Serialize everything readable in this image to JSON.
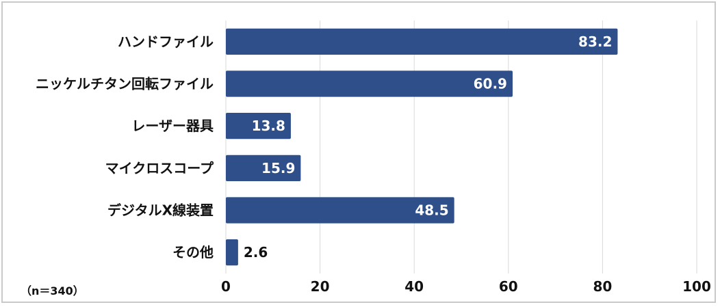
{
  "chart_data": {
    "type": "bar",
    "orientation": "horizontal",
    "categories": [
      "ハンドファイル",
      "ニッケルチタン回転ファイル",
      "レーザー器具",
      "マイクロスコープ",
      "デジタルX線装置",
      "その他"
    ],
    "values": [
      83.2,
      60.9,
      13.8,
      15.9,
      48.5,
      2.6
    ],
    "xlim": [
      0,
      100
    ],
    "xticks": [
      0,
      20,
      40,
      60,
      80,
      100
    ],
    "grid": true,
    "bar_color": "#2f4f8a",
    "note": "（n＝340）"
  }
}
